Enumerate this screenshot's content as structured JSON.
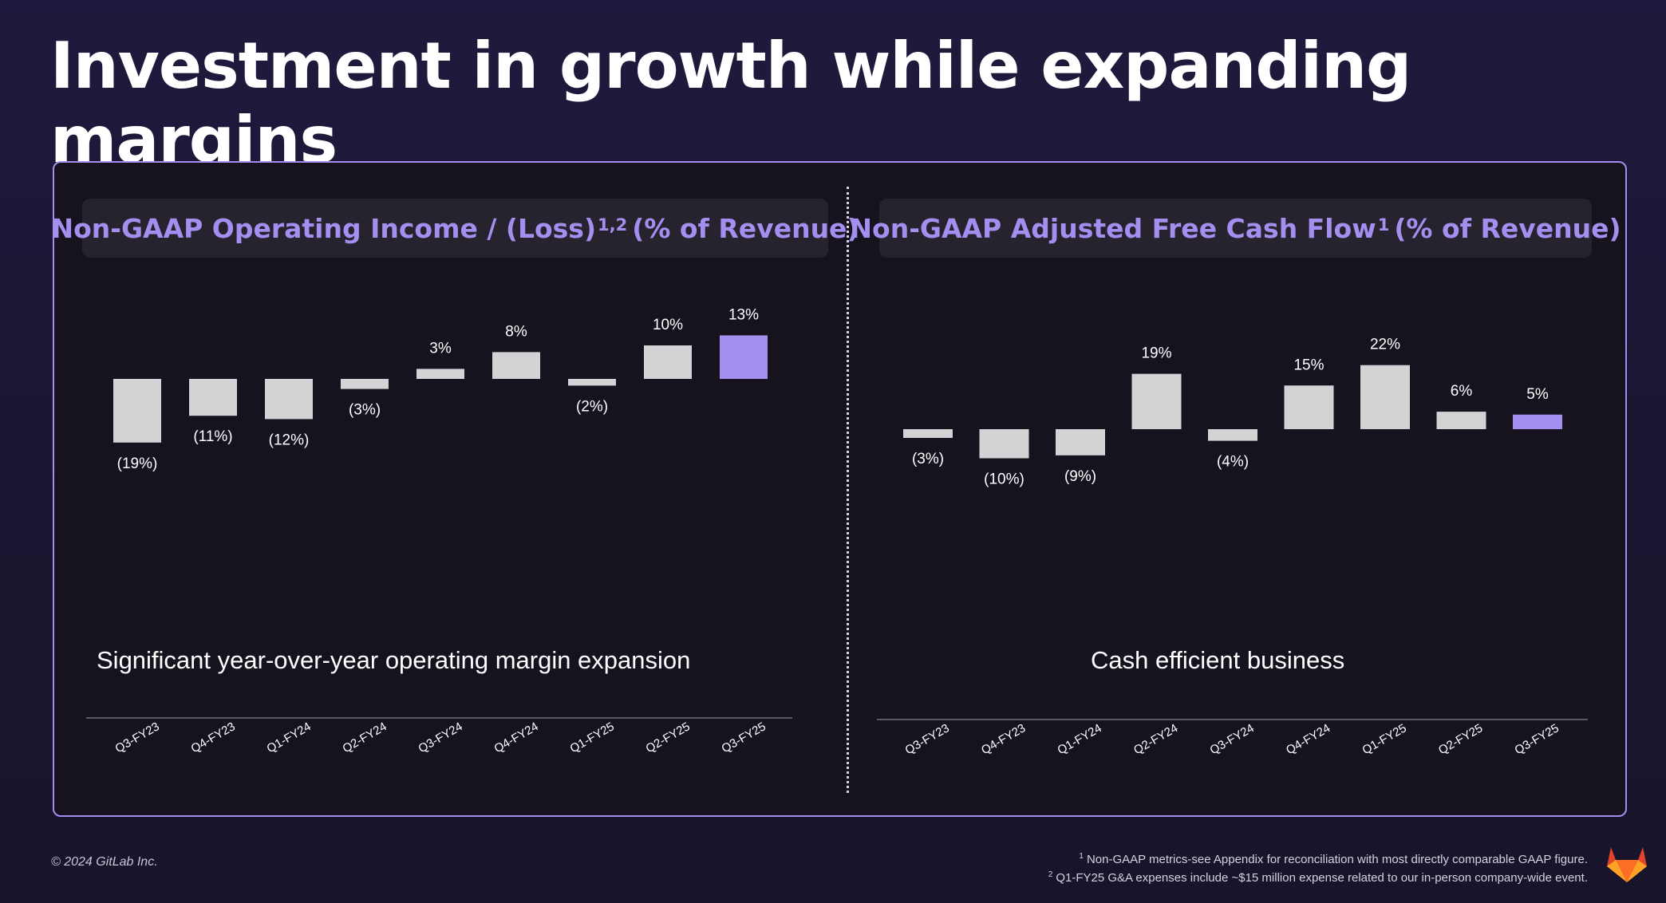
{
  "title": "Investment in growth while expanding margins",
  "left_chart": {
    "heading": "Non-GAAP Operating Income / (Loss)",
    "heading_sup": "1,2",
    "heading_suffix": "(% of Revenue)",
    "caption": "Significant year-over-year operating margin expansion"
  },
  "right_chart": {
    "heading": "Non-GAAP Adjusted Free Cash Flow",
    "heading_sup": "1",
    "heading_suffix": "(% of Revenue)",
    "caption": "Cash efficient business"
  },
  "chart_data": [
    {
      "type": "bar",
      "title": "Non-GAAP Operating Income / (Loss)1,2 (% of Revenue)",
      "categories": [
        "Q3-FY23",
        "Q4-FY23",
        "Q1-FY24",
        "Q2-FY24",
        "Q3-FY24",
        "Q4-FY24",
        "Q1-FY25",
        "Q2-FY25",
        "Q3-FY25"
      ],
      "values": [
        -19,
        -11,
        -12,
        -3,
        3,
        8,
        -2,
        10,
        13
      ],
      "labels": [
        "(19%)",
        "(11%)",
        "(12%)",
        "(3%)",
        "3%",
        "8%",
        "(2%)",
        "10%",
        "13%"
      ],
      "highlight_index": 8,
      "colors": {
        "default": "#d3d3d6",
        "highlight": "#a28ff0"
      }
    },
    {
      "type": "bar",
      "title": "Non-GAAP Adjusted Free Cash Flow1 (% of Revenue)",
      "categories": [
        "Q3-FY23",
        "Q4-FY23",
        "Q1-FY24",
        "Q2-FY24",
        "Q3-FY24",
        "Q4-FY24",
        "Q1-FY25",
        "Q2-FY25",
        "Q3-FY25"
      ],
      "values": [
        -3,
        -10,
        -9,
        19,
        -4,
        15,
        22,
        6,
        5
      ],
      "labels": [
        "(3%)",
        "(10%)",
        "(9%)",
        "19%",
        "(4%)",
        "15%",
        "22%",
        "6%",
        "5%"
      ],
      "highlight_index": 8,
      "colors": {
        "default": "#d3d3d6",
        "highlight": "#a28ff0"
      }
    }
  ],
  "footer": {
    "copyright": "© 2024 GitLab Inc.",
    "footnote1_mark": "1",
    "footnote1": "Non-GAAP metrics-see Appendix for reconciliation with most directly comparable GAAP figure.",
    "footnote2_mark": "2",
    "footnote2": "Q1-FY25 G&A expenses include ~$15 million expense related to our in-person company-wide event."
  },
  "logo_icon": "gitlab-tanuki-icon"
}
